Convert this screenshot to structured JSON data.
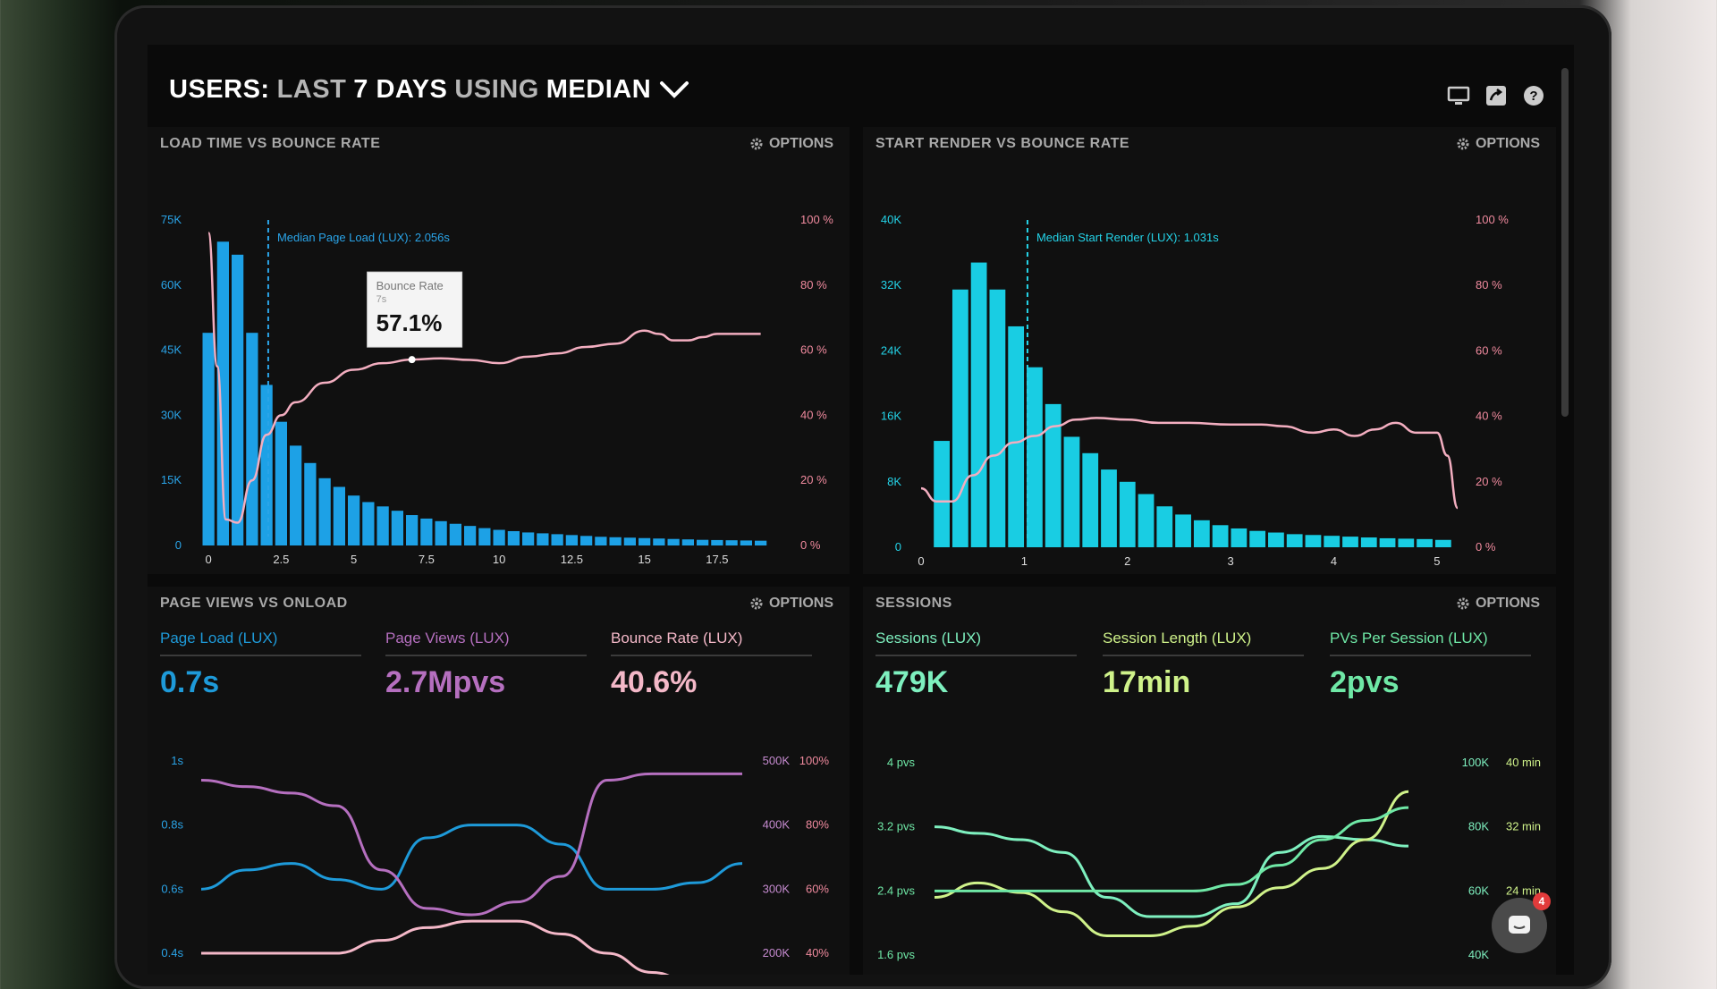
{
  "header": {
    "part1": "USERS:",
    "part2": "LAST",
    "part3": "7 DAYS",
    "part4": "USING",
    "part5": "MEDIAN"
  },
  "icons": [
    "desktop-icon",
    "share-icon",
    "help-icon",
    "chevron-down-icon",
    "gear-icon",
    "chat-icon"
  ],
  "options_label": "OPTIONS",
  "chat_badge": "4",
  "colors": {
    "bar_blue": "#1da1e6",
    "bar_cyan": "#19cde3",
    "bounce_pink": "#f3aec0",
    "pageload_blue": "#1e9ad9",
    "pageviews_purple": "#b56fbf",
    "bounce_metric_pink": "#f4b8c8",
    "sessions_green": "#7ef0bf",
    "session_length_yellow": "#cff28a",
    "pvs_green": "#6fe8a6"
  },
  "panels": {
    "p1": {
      "title": "LOAD TIME VS BOUNCE RATE",
      "median_label": "Median Page Load (LUX): 2.056s",
      "tooltip": {
        "title": "Bounce Rate",
        "sub": "7s",
        "value": "57.1%"
      },
      "legend": [
        "Page Load (LUX)",
        "Bounce Rate"
      ]
    },
    "p2": {
      "title": "START RENDER VS BOUNCE RATE",
      "median_label": "Median Start Render (LUX): 1.031s",
      "legend": [
        "Start Render (LUX)",
        "Bounce Rate"
      ]
    },
    "p3": {
      "title": "PAGE VIEWS VS ONLOAD",
      "metrics": [
        {
          "label": "Page Load (LUX)",
          "value": "0.7s"
        },
        {
          "label": "Page Views (LUX)",
          "value": "2.7Mpvs"
        },
        {
          "label": "Bounce Rate (LUX)",
          "value": "40.6%"
        }
      ]
    },
    "p4": {
      "title": "SESSIONS",
      "metrics": [
        {
          "label": "Sessions (LUX)",
          "value": "479K"
        },
        {
          "label": "Session Length (LUX)",
          "value": "17min"
        },
        {
          "label": "PVs Per Session (LUX)",
          "value": "2pvs"
        }
      ]
    }
  },
  "chart_data": [
    {
      "type": "bar",
      "title": "LOAD TIME VS BOUNCE RATE",
      "x_ticks": [
        "0",
        "2.5",
        "5",
        "7.5",
        "10",
        "12.5",
        "15",
        "17.5"
      ],
      "y_ticks_left": [
        "0",
        "15K",
        "30K",
        "45K",
        "60K",
        "75K"
      ],
      "y_ticks_right": [
        "0 %",
        "20 %",
        "40 %",
        "60 %",
        "80 %",
        "100 %"
      ],
      "xlim": [
        -0.25,
        19.75
      ],
      "ylim": [
        0,
        75000
      ],
      "bin_width": 0.5,
      "median_x": 2.056,
      "series": [
        {
          "name": "Page Load (LUX)",
          "type": "bar",
          "x": [
            0,
            0.5,
            1,
            1.5,
            2,
            2.5,
            3,
            3.5,
            4,
            4.5,
            5,
            5.5,
            6,
            6.5,
            7,
            7.5,
            8,
            8.5,
            9,
            9.5,
            10,
            10.5,
            11,
            11.5,
            12,
            12.5,
            13,
            13.5,
            14,
            14.5,
            15,
            15.5,
            16,
            16.5,
            17,
            17.5,
            18,
            18.5,
            19
          ],
          "values": [
            49000,
            70000,
            67000,
            49000,
            37000,
            28500,
            23000,
            19000,
            15500,
            13500,
            11500,
            10000,
            9000,
            8000,
            7000,
            6200,
            5600,
            5000,
            4500,
            4000,
            3600,
            3300,
            3000,
            2800,
            2600,
            2400,
            2200,
            2000,
            1900,
            1800,
            1700,
            1600,
            1500,
            1400,
            1300,
            1250,
            1200,
            1150,
            1100
          ]
        },
        {
          "name": "Bounce Rate",
          "type": "line",
          "axis": "right",
          "x": [
            0,
            0.3,
            0.6,
            1,
            1.5,
            2,
            2.5,
            3,
            4,
            5,
            6,
            7,
            8,
            9,
            10,
            11,
            12,
            13,
            14,
            15,
            15.5,
            16,
            16.5,
            17,
            17.5,
            18,
            19
          ],
          "values": [
            96,
            55,
            8,
            7,
            20,
            34,
            40,
            44,
            50,
            54,
            56,
            57.1,
            57.5,
            57,
            56,
            58,
            59,
            61,
            62,
            66,
            65,
            63,
            63,
            64,
            65,
            65,
            65
          ]
        }
      ]
    },
    {
      "type": "bar",
      "title": "START RENDER VS BOUNCE RATE",
      "x_ticks": [
        "0",
        "1",
        "2",
        "3",
        "4",
        "5"
      ],
      "y_ticks_left": [
        "0",
        "8K",
        "16K",
        "24K",
        "32K",
        "40K"
      ],
      "y_ticks_right": [
        "0 %",
        "20 %",
        "40 %",
        "60 %",
        "80 %",
        "100 %"
      ],
      "xlim": [
        0,
        5.2
      ],
      "ylim": [
        0,
        40000
      ],
      "bin_width": 0.18,
      "median_x": 1.031,
      "series": [
        {
          "name": "Start Render (LUX)",
          "type": "bar",
          "x": [
            0.2,
            0.38,
            0.56,
            0.74,
            0.92,
            1.1,
            1.28,
            1.46,
            1.64,
            1.82,
            2,
            2.18,
            2.36,
            2.54,
            2.72,
            2.9,
            3.08,
            3.26,
            3.44,
            3.62,
            3.8,
            3.98,
            4.16,
            4.34,
            4.52,
            4.7,
            4.88,
            5.06
          ],
          "values": [
            13000,
            31500,
            34800,
            31500,
            27000,
            22000,
            17500,
            13500,
            11500,
            9500,
            8000,
            6500,
            5000,
            4000,
            3300,
            2700,
            2300,
            2000,
            1800,
            1600,
            1500,
            1400,
            1300,
            1200,
            1100,
            1050,
            1000,
            900
          ]
        },
        {
          "name": "Bounce Rate",
          "type": "line",
          "axis": "right",
          "x": [
            0,
            0.15,
            0.3,
            0.5,
            0.7,
            0.9,
            1.1,
            1.3,
            1.5,
            1.7,
            2,
            2.3,
            2.6,
            3,
            3.3,
            3.5,
            3.8,
            4,
            4.2,
            4.4,
            4.6,
            4.8,
            5,
            5.1,
            5.2
          ],
          "values": [
            18,
            14,
            14,
            22,
            28,
            32,
            34,
            37,
            39,
            39.5,
            39,
            38,
            38,
            37.5,
            37.5,
            37,
            35,
            36,
            34,
            36,
            38,
            35,
            35,
            28,
            12
          ]
        }
      ]
    },
    {
      "type": "line",
      "title": "PAGE VIEWS VS ONLOAD",
      "y_ticks_left": [
        "1s",
        "0.8s",
        "0.6s",
        "0.4s"
      ],
      "y_ticks_right_outer": [
        "500K",
        "400K",
        "300K",
        "200K"
      ],
      "y_ticks_right_inner": [
        "100%",
        "80%",
        "60%",
        "40%"
      ],
      "ylim": [
        0.4,
        1.0
      ],
      "series": [
        {
          "name": "Page Load (LUX)",
          "axis": "left (s)",
          "x": [
            0,
            1,
            2,
            3,
            4,
            5,
            6,
            7,
            8,
            9,
            10,
            11,
            12
          ],
          "values": [
            0.6,
            0.66,
            0.68,
            0.63,
            0.6,
            0.76,
            0.8,
            0.8,
            0.74,
            0.6,
            0.6,
            0.62,
            0.68
          ]
        },
        {
          "name": "Page Views (LUX)",
          "axis": "right outer (pvs)",
          "x": [
            0,
            1,
            2,
            3,
            4,
            5,
            6,
            7,
            8,
            9,
            10,
            11,
            12
          ],
          "values": [
            470000,
            460000,
            450000,
            430000,
            330000,
            270000,
            260000,
            280000,
            320000,
            470000,
            480000,
            480000,
            480000
          ]
        },
        {
          "name": "Bounce Rate (LUX)",
          "axis": "right inner (%)",
          "x": [
            0,
            1,
            2,
            3,
            4,
            5,
            6,
            7,
            8,
            9,
            10,
            11,
            12
          ],
          "values": [
            40,
            40,
            40,
            40,
            44,
            48,
            50,
            50,
            46,
            40,
            34,
            30,
            28
          ]
        }
      ]
    },
    {
      "type": "line",
      "title": "SESSIONS",
      "y_ticks_left": [
        "4 pvs",
        "3.2 pvs",
        "2.4 pvs",
        "1.6 pvs"
      ],
      "y_ticks_right_outer": [
        "100K",
        "80K",
        "60K",
        "40K"
      ],
      "y_ticks_right_inner": [
        "40 min",
        "32 min",
        "24 min"
      ],
      "ylim": [
        1.0,
        4.0
      ],
      "series": [
        {
          "name": "Sessions (LUX)",
          "axis": "right outer",
          "x": [
            0,
            1,
            2,
            3,
            4,
            5,
            6,
            7,
            8,
            9,
            10,
            11
          ],
          "values": [
            80000,
            78000,
            76000,
            72000,
            58000,
            52000,
            52000,
            56000,
            72000,
            77000,
            76000,
            74000
          ]
        },
        {
          "name": "Session Length (LUX)",
          "axis": "right inner",
          "x": [
            0,
            1,
            2,
            3,
            4,
            5,
            6,
            7,
            8,
            9,
            10,
            11
          ],
          "values": [
            12,
            15,
            13,
            9,
            4,
            4,
            6,
            10,
            14,
            18,
            24,
            34
          ]
        },
        {
          "name": "PVs Per Session (LUX)",
          "axis": "left",
          "x": [
            0,
            1,
            2,
            3,
            4,
            5,
            6,
            7,
            8,
            9,
            10,
            11
          ],
          "values": [
            2.0,
            2.0,
            2.0,
            2.0,
            2.0,
            2.0,
            2.0,
            2.1,
            2.4,
            2.8,
            3.1,
            3.3
          ]
        }
      ]
    }
  ]
}
